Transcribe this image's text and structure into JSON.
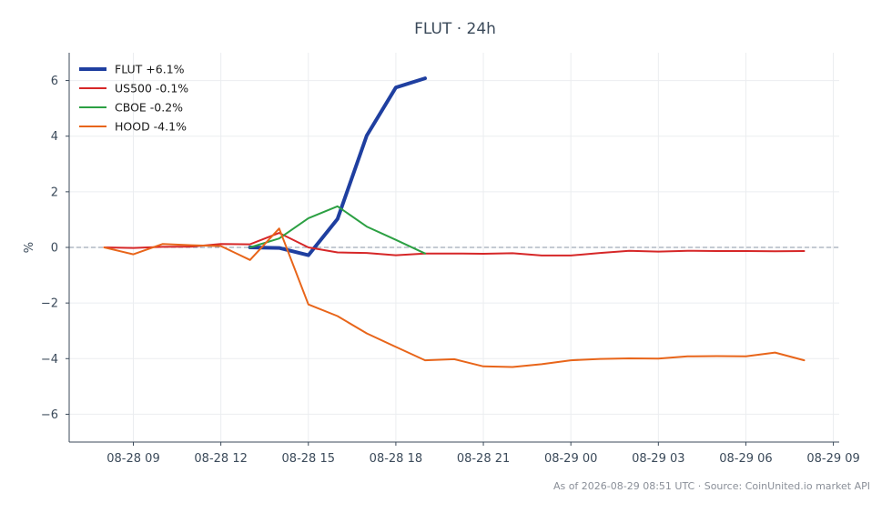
{
  "chart_data": {
    "type": "line",
    "title": "FLUT · 24h",
    "xlabel": "",
    "ylabel": "%",
    "ylim": [
      -7,
      7
    ],
    "yticks": [
      -6,
      -4,
      -2,
      0,
      2,
      4,
      6
    ],
    "ytick_labels": [
      "−6",
      "−4",
      "−2",
      "0",
      "2",
      "4",
      "6"
    ],
    "xlim": [
      "2026-08-28 06:48",
      "2026-08-29 09:12"
    ],
    "xticks": [
      "2026-08-28 09:00",
      "2026-08-28 12:00",
      "2026-08-28 15:00",
      "2026-08-28 18:00",
      "2026-08-28 21:00",
      "2026-08-29 00:00",
      "2026-08-29 03:00",
      "2026-08-29 06:00",
      "2026-08-29 09:00"
    ],
    "xtick_labels": [
      "08-28 09",
      "08-28 12",
      "08-28 15",
      "08-28 18",
      "08-28 21",
      "08-29 00",
      "08-29 03",
      "08-29 06",
      "08-29 09"
    ],
    "grid": true,
    "zero_line": true,
    "legend_position": "top-left",
    "series": [
      {
        "name": "FLUT +6.1%",
        "color": "#1f3fa0",
        "width": 4,
        "x": [
          "2026-08-28 13:00",
          "2026-08-28 14:00",
          "2026-08-28 15:00",
          "2026-08-28 16:00",
          "2026-08-28 17:00",
          "2026-08-28 18:00",
          "2026-08-28 19:00"
        ],
        "y": [
          0.0,
          -0.02,
          -0.28,
          1.02,
          4.02,
          5.75,
          6.08
        ]
      },
      {
        "name": "US500 -0.1%",
        "color": "#d62728",
        "width": 2,
        "x": [
          "2026-08-28 08:00",
          "2026-08-28 09:00",
          "2026-08-28 10:00",
          "2026-08-28 11:00",
          "2026-08-28 12:00",
          "2026-08-28 13:00",
          "2026-08-28 14:00",
          "2026-08-28 15:00",
          "2026-08-28 16:00",
          "2026-08-28 17:00",
          "2026-08-28 18:00",
          "2026-08-28 19:00",
          "2026-08-28 20:00",
          "2026-08-28 21:00",
          "2026-08-28 22:00",
          "2026-08-28 23:00",
          "2026-08-29 00:00",
          "2026-08-29 01:00",
          "2026-08-29 02:00",
          "2026-08-29 03:00",
          "2026-08-29 04:00",
          "2026-08-29 05:00",
          "2026-08-29 06:00",
          "2026-08-29 07:00",
          "2026-08-29 08:00"
        ],
        "y": [
          0.0,
          -0.02,
          0.02,
          0.03,
          0.12,
          0.11,
          0.52,
          0.0,
          -0.18,
          -0.2,
          -0.28,
          -0.22,
          -0.22,
          -0.23,
          -0.21,
          -0.29,
          -0.29,
          -0.2,
          -0.12,
          -0.15,
          -0.12,
          -0.13,
          -0.13,
          -0.14,
          -0.13
        ]
      },
      {
        "name": "CBOE -0.2%",
        "color": "#2ca043",
        "width": 2,
        "x": [
          "2026-08-28 13:00",
          "2026-08-28 14:00",
          "2026-08-28 15:00",
          "2026-08-28 16:00",
          "2026-08-28 17:00",
          "2026-08-28 18:00",
          "2026-08-28 19:00"
        ],
        "y": [
          0.0,
          0.32,
          1.05,
          1.48,
          0.75,
          0.27,
          -0.22
        ]
      },
      {
        "name": "HOOD -4.1%",
        "color": "#e8651a",
        "width": 2,
        "x": [
          "2026-08-28 08:00",
          "2026-08-28 09:00",
          "2026-08-28 10:00",
          "2026-08-28 11:00",
          "2026-08-28 12:00",
          "2026-08-28 13:00",
          "2026-08-28 14:00",
          "2026-08-28 15:00",
          "2026-08-28 16:00",
          "2026-08-28 17:00",
          "2026-08-28 18:00",
          "2026-08-28 19:00",
          "2026-08-28 20:00",
          "2026-08-28 21:00",
          "2026-08-28 22:00",
          "2026-08-28 23:00",
          "2026-08-29 00:00",
          "2026-08-29 01:00",
          "2026-08-29 02:00",
          "2026-08-29 03:00",
          "2026-08-29 04:00",
          "2026-08-29 05:00",
          "2026-08-29 06:00",
          "2026-08-29 07:00",
          "2026-08-29 08:00"
        ],
        "y": [
          0.0,
          -0.25,
          0.12,
          0.08,
          0.05,
          -0.45,
          0.68,
          -2.05,
          -2.47,
          -3.09,
          -3.58,
          -4.06,
          -4.02,
          -4.28,
          -4.3,
          -4.2,
          -4.06,
          -4.01,
          -3.99,
          -4.0,
          -3.92,
          -3.91,
          -3.92,
          -3.78,
          -4.06
        ]
      }
    ]
  },
  "footer": {
    "text": "As of 2026-08-29 08:51 UTC · Source: CoinUnited.io market API"
  }
}
